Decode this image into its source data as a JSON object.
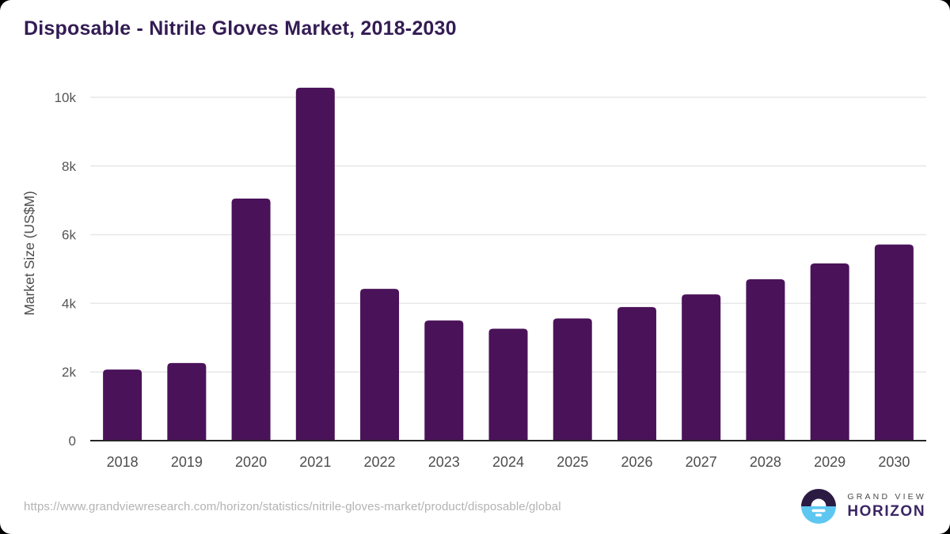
{
  "page": {
    "background_color": "#000000",
    "card_background_color": "#ffffff"
  },
  "header": {
    "title": "Disposable - Nitrile Gloves Market, 2018-2030",
    "title_color": "#331c54"
  },
  "chart_data": {
    "type": "bar",
    "title": "Disposable - Nitrile Gloves Market, 2018-2030",
    "categories": [
      "2018",
      "2019",
      "2020",
      "2021",
      "2022",
      "2023",
      "2024",
      "2025",
      "2026",
      "2027",
      "2028",
      "2029",
      "2030"
    ],
    "values": [
      2070,
      2260,
      7050,
      10280,
      4420,
      3500,
      3260,
      3560,
      3890,
      4260,
      4700,
      5160,
      5710
    ],
    "xlabel": "",
    "ylabel": "Market Size (US$M)",
    "ylim": [
      0,
      10800
    ],
    "yticks": [
      {
        "value": 0,
        "label": "0"
      },
      {
        "value": 2000,
        "label": "2k"
      },
      {
        "value": 4000,
        "label": "4k"
      },
      {
        "value": 6000,
        "label": "6k"
      },
      {
        "value": 8000,
        "label": "8k"
      },
      {
        "value": 10000,
        "label": "10k"
      }
    ],
    "grid": "horizontal",
    "legend": "none",
    "bar_color": "#4a1259",
    "gridline_color": "#e7e7e7",
    "axis_line_color": "#262626",
    "tick_label_color": "#555555"
  },
  "footer": {
    "url": "https://www.grandviewresearch.com/horizon/statistics/nitrile-gloves-market/product/disposable/global",
    "logo": {
      "line1": "GRAND VIEW",
      "line2": "HORIZON",
      "mark_top_color": "#2b1b43",
      "mark_bottom_color": "#5ec7f1"
    }
  }
}
